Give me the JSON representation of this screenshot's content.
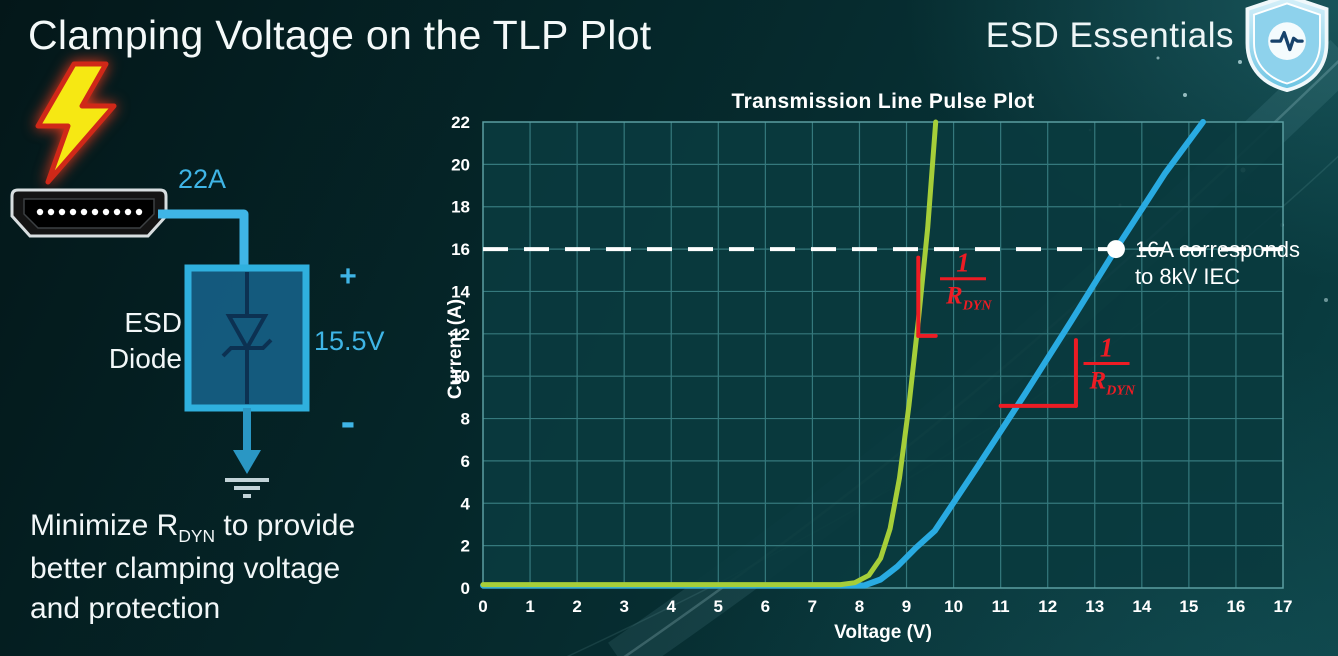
{
  "header": {
    "title": "Clamping Voltage on the TLP Plot",
    "brand": "ESD Essentials"
  },
  "diagram": {
    "surge_current_label": "22A",
    "device_label_line1": "ESD",
    "device_label_line2": "Diode",
    "polarity_plus": "+",
    "polarity_minus": "-",
    "clamping_voltage_label": "15.5V"
  },
  "note": {
    "line1_pre": "Minimize R",
    "line1_sub": "DYN",
    "line1_post": " to provide",
    "line2": "better clamping voltage",
    "line3": "and protection"
  },
  "chart_data": {
    "type": "line",
    "title": "Transmission Line Pulse Plot",
    "xlabel": "Voltage (V)",
    "ylabel": "Current (A)",
    "xlim": [
      0,
      17
    ],
    "ylim": [
      0,
      22
    ],
    "x_ticks": [
      0,
      1,
      2,
      3,
      4,
      5,
      6,
      7,
      8,
      9,
      10,
      11,
      12,
      13,
      14,
      15,
      16,
      17
    ],
    "y_ticks": [
      0,
      2,
      4,
      6,
      8,
      10,
      12,
      14,
      16,
      18,
      20,
      22
    ],
    "grid": true,
    "legend": "none",
    "plot_bg": "#0a3a3e",
    "grid_color": "#35797d",
    "border_color": "#5b9ea1",
    "series": [
      {
        "name": "high-rdyn-diode",
        "color": "#29abe2",
        "width": 6,
        "points": [
          [
            0,
            0.12
          ],
          [
            8.1,
            0.12
          ],
          [
            8.45,
            0.4
          ],
          [
            8.8,
            1.0
          ],
          [
            9.2,
            1.9
          ],
          [
            9.6,
            2.7
          ],
          [
            10.5,
            5.7
          ],
          [
            11.5,
            9.1
          ],
          [
            12.5,
            12.6
          ],
          [
            13.45,
            16
          ],
          [
            14.5,
            19.6
          ],
          [
            15.3,
            22
          ]
        ]
      },
      {
        "name": "low-rdyn-diode",
        "color": "#a6ce39",
        "width": 5,
        "points": [
          [
            0,
            0.16
          ],
          [
            7.6,
            0.16
          ],
          [
            7.9,
            0.25
          ],
          [
            8.2,
            0.6
          ],
          [
            8.45,
            1.4
          ],
          [
            8.65,
            2.8
          ],
          [
            8.85,
            5.2
          ],
          [
            9.05,
            8.6
          ],
          [
            9.25,
            12.6
          ],
          [
            9.45,
            17
          ],
          [
            9.62,
            22
          ]
        ]
      }
    ],
    "reference_line": {
      "y": 16,
      "color": "#ffffff",
      "style": "dashed"
    },
    "marker": {
      "x": 13.45,
      "y": 16,
      "color": "#ffffff",
      "label_line1": "16A corresponds",
      "label_line2": "to 8kV IEC"
    },
    "annotations": [
      {
        "name": "rdyn-slope-green",
        "color": "#ed1c24",
        "numerator": "1",
        "denominator": "R",
        "denominator_sub": "DYN",
        "segments": [
          [
            9.25,
            15.6,
            9.25,
            11.9
          ],
          [
            9.25,
            11.9,
            9.62,
            11.9
          ]
        ],
        "frac_pos": [
          10.2,
          14.6
        ]
      },
      {
        "name": "rdyn-slope-blue",
        "color": "#ed1c24",
        "numerator": "1",
        "denominator": "R",
        "denominator_sub": "DYN",
        "segments": [
          [
            11.0,
            8.6,
            12.6,
            8.6
          ],
          [
            12.6,
            8.6,
            12.6,
            11.7
          ]
        ],
        "frac_pos": [
          13.25,
          10.6
        ]
      }
    ]
  }
}
